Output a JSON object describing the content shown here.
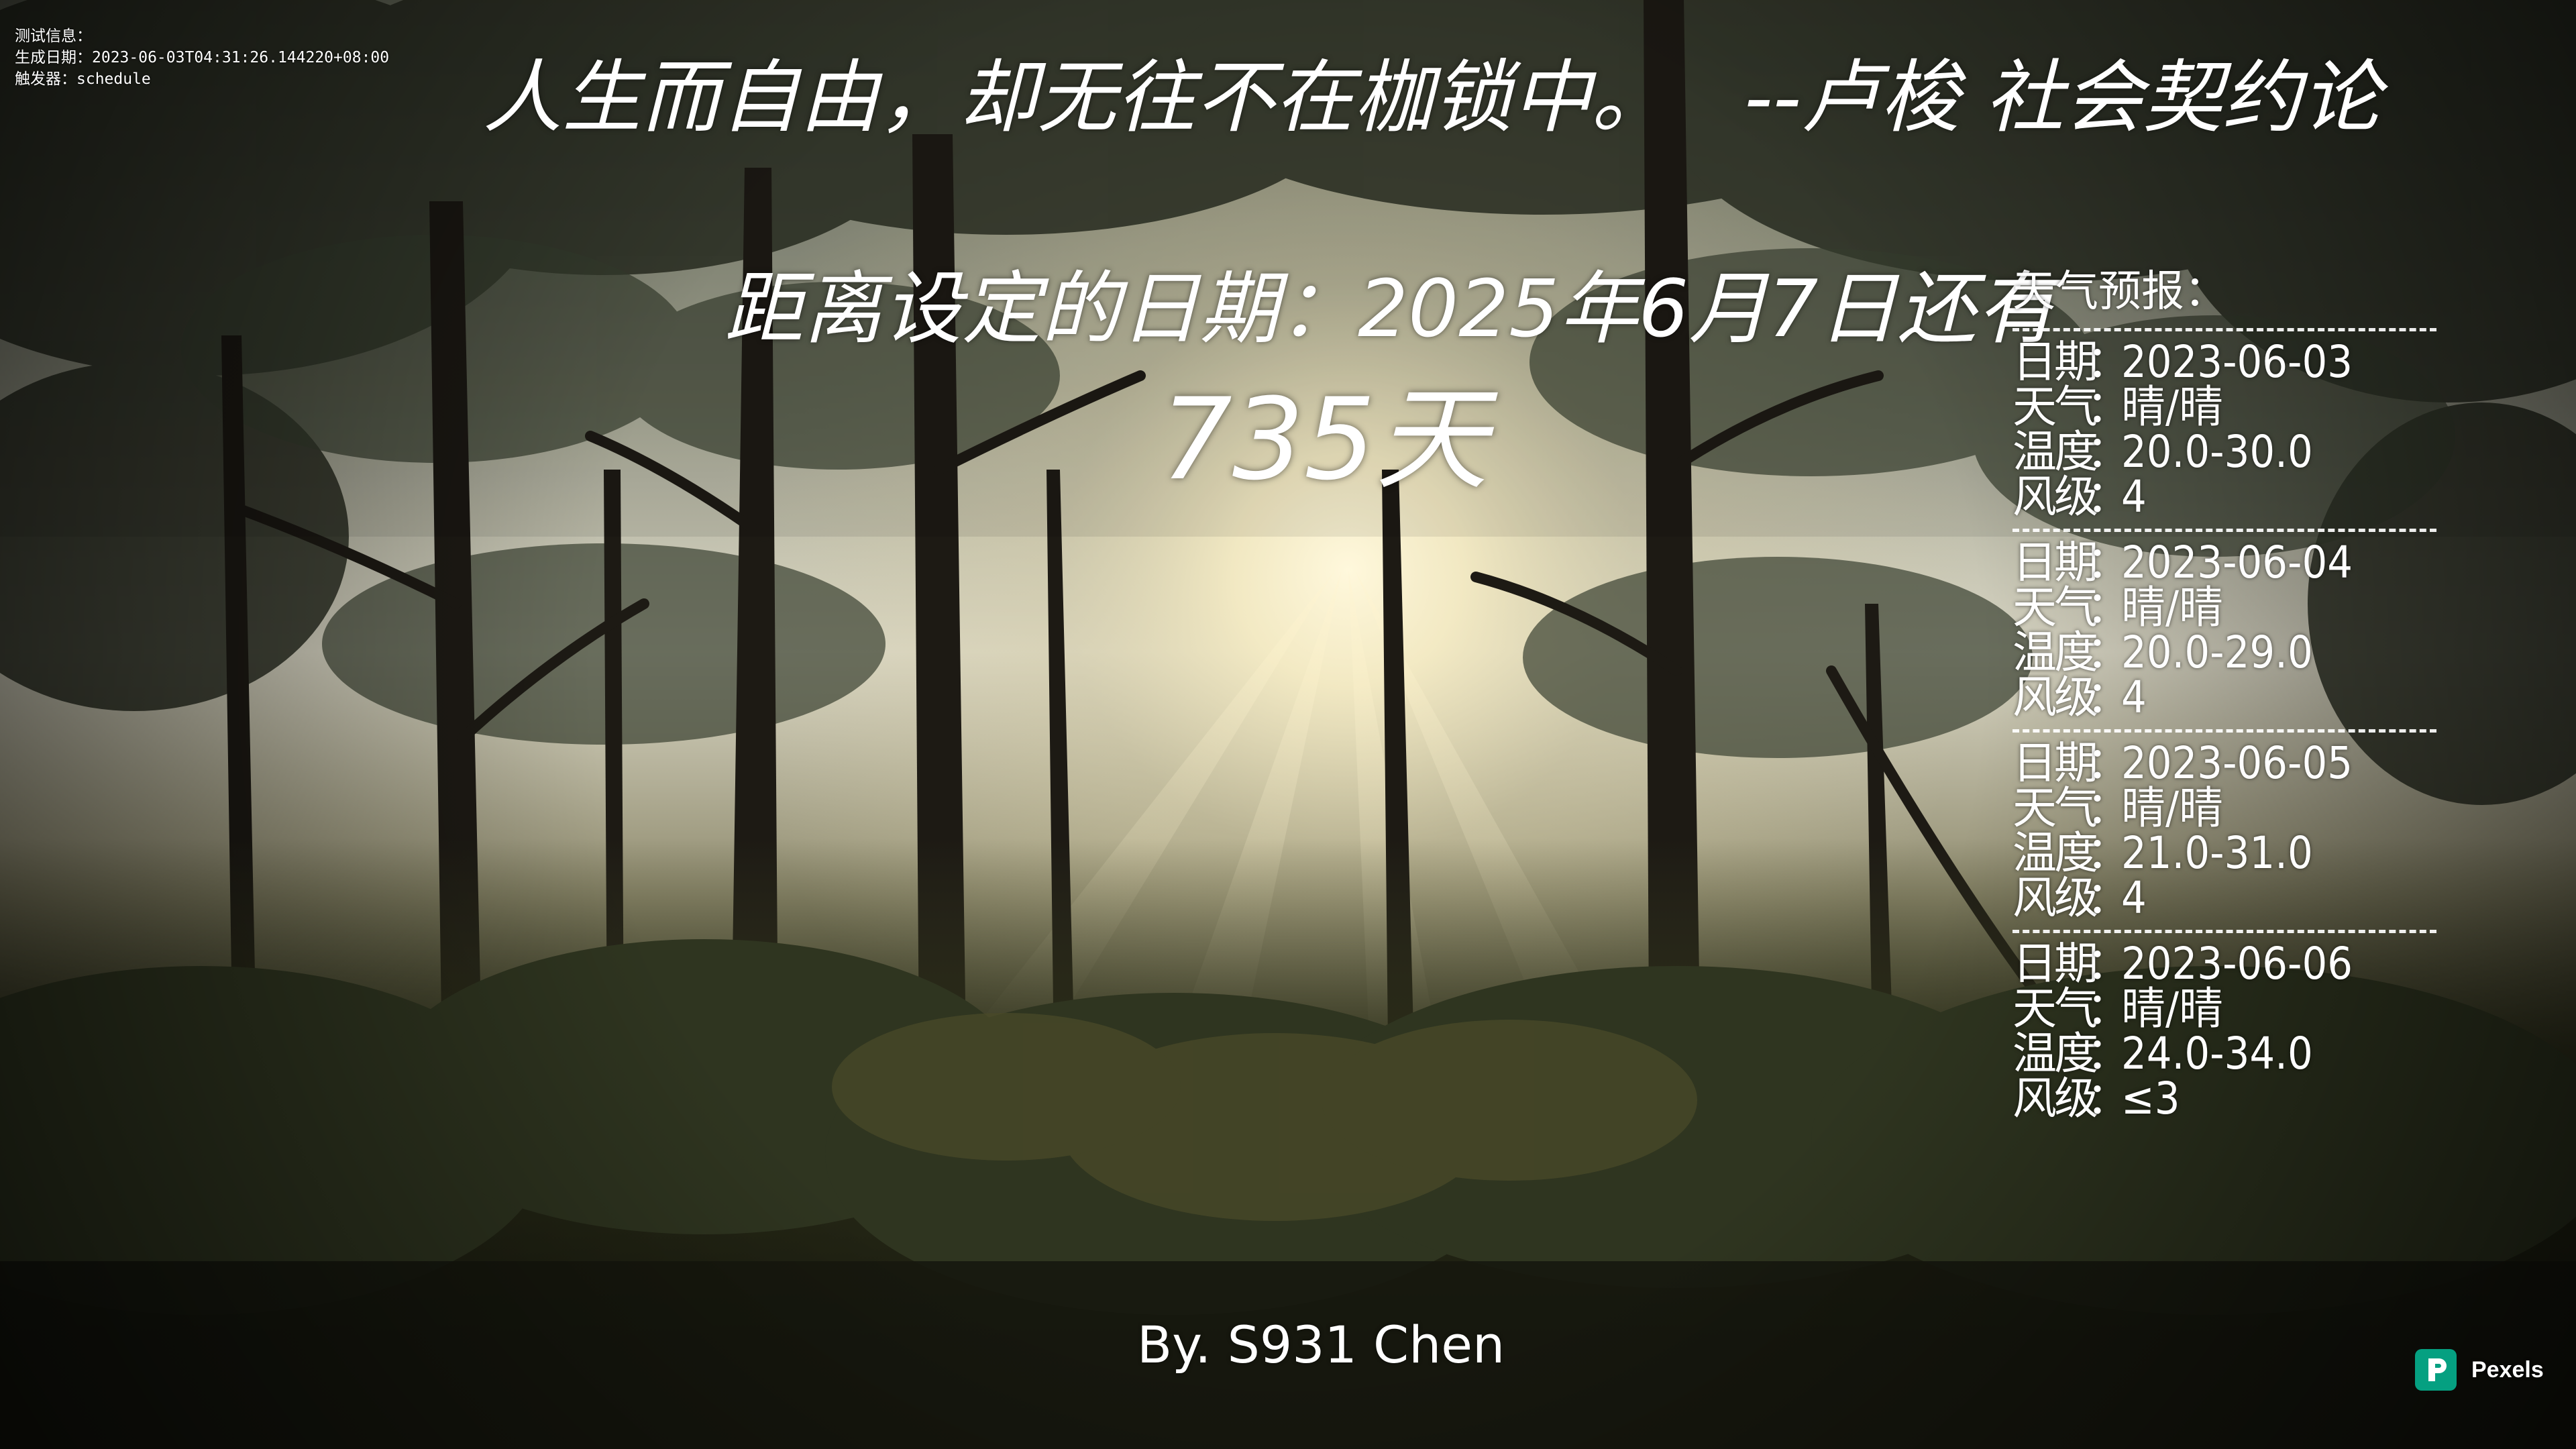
{
  "debug": {
    "title": "测试信息：",
    "generated": "生成日期：2023-06-03T04:31:26.144220+08:00",
    "trigger": "触发器：schedule"
  },
  "quote": {
    "text": "人生而自由，却无往不在枷锁中。",
    "author": "--卢梭 社会契约论"
  },
  "countdown": {
    "label": "距离设定的日期：2025年6月7日还有",
    "days": "735天"
  },
  "weather": {
    "title": "天气预报：",
    "separator": "--------------------------------",
    "labels": {
      "date": "日期",
      "weather": "天气",
      "temp": "温度",
      "wind": "风级",
      "colon": "："
    },
    "days": [
      {
        "date": "2023-06-03",
        "weather": "晴/晴",
        "temp": "20.0-30.0",
        "wind": "4"
      },
      {
        "date": "2023-06-04",
        "weather": "晴/晴",
        "temp": "20.0-29.0",
        "wind": "4"
      },
      {
        "date": "2023-06-05",
        "weather": "晴/晴",
        "temp": "21.0-31.0",
        "wind": "4"
      },
      {
        "date": "2023-06-06",
        "weather": "晴/晴",
        "temp": "24.0-34.0",
        "wind": "≤3"
      }
    ]
  },
  "signature": "By. S931 Chen",
  "watermark": {
    "name": "Pexels",
    "logo_color": "#05a081"
  },
  "colors": {
    "text": "#ffffff",
    "sky_light": "#f3f0e4",
    "sun": "#fff6d8",
    "forest_dark": "#1c1f16",
    "foliage": "#2f3a22",
    "trunk": "#1a1712"
  }
}
